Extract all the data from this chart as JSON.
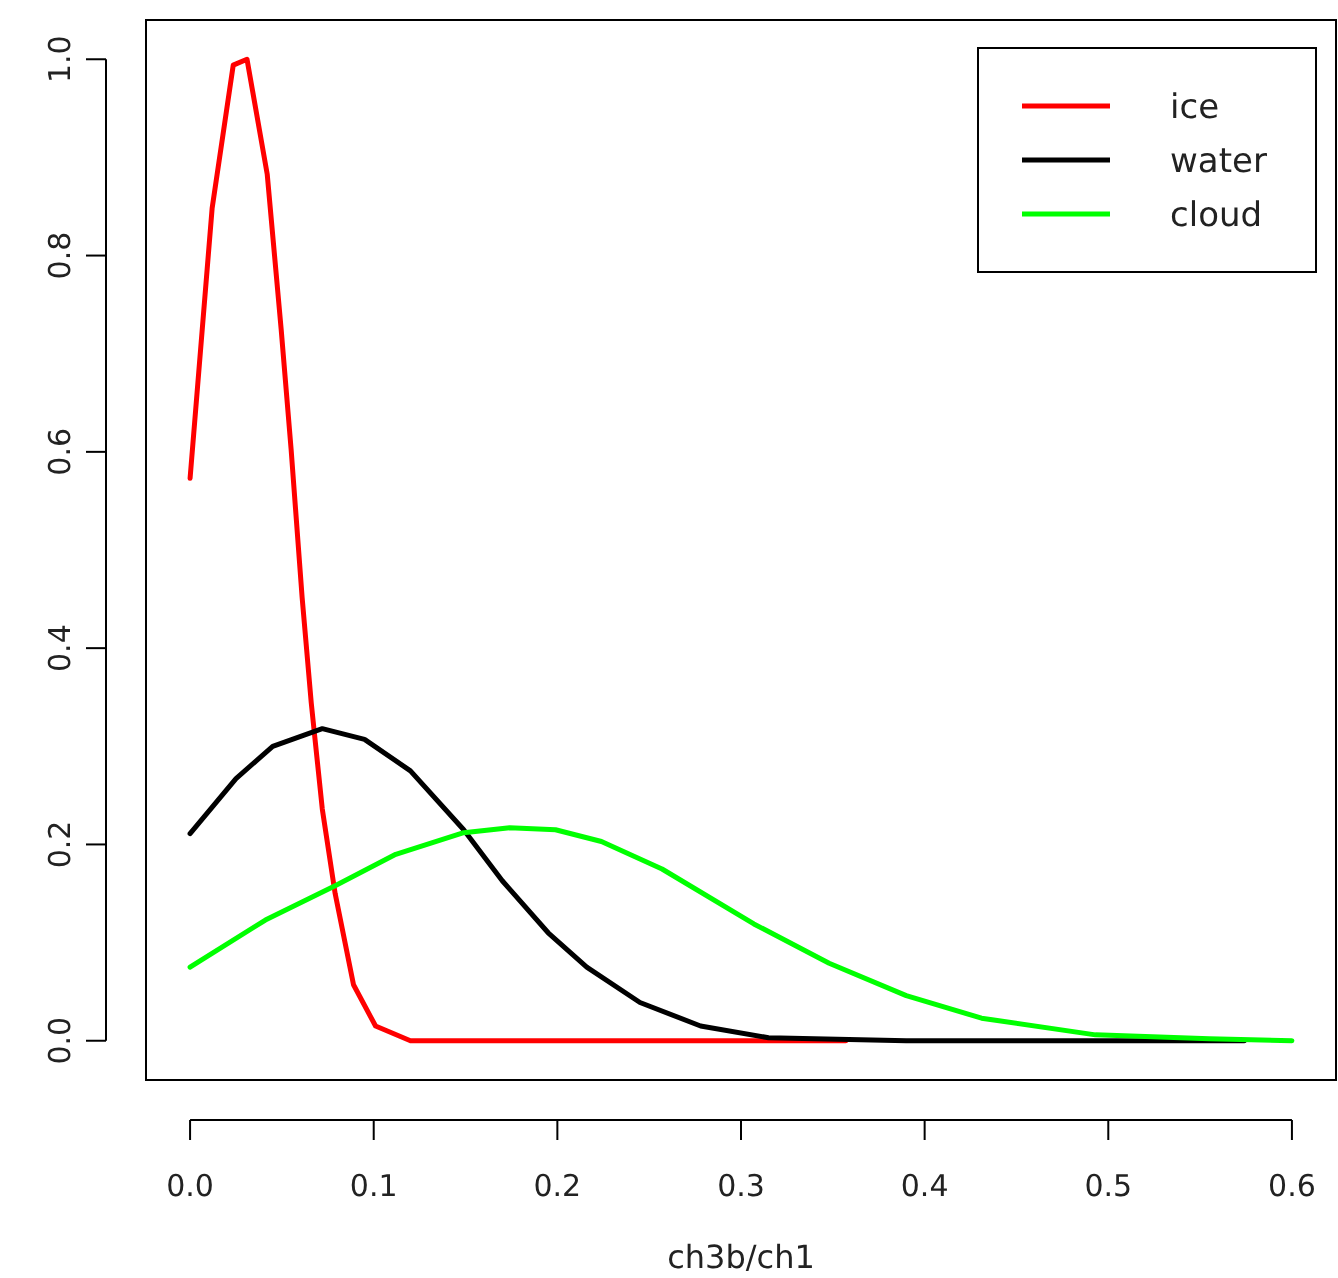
{
  "chart_data": {
    "type": "line",
    "xlabel": "ch3b/ch1",
    "xlim": [
      -0.024,
      0.624
    ],
    "ylim": [
      -0.04,
      1.04
    ],
    "xticks": [
      {
        "value": 0,
        "label": "0.0"
      },
      0.1,
      0.2,
      0.3,
      0.4,
      0.5,
      0.6
    ],
    "yticks": [
      {
        "value": 0,
        "label": "0.0"
      },
      0.2,
      0.4,
      0.6,
      0.8,
      {
        "value": 1,
        "label": "1.0"
      }
    ],
    "legend": "top right",
    "grid": false,
    "marker": "none",
    "line_style": "solid",
    "series": [
      {
        "name": "ice",
        "color": "#ff0000",
        "x": [
          0,
          0.012,
          0.0235,
          0.031,
          0.042,
          0.0496,
          0.055,
          0.061,
          0.066,
          0.072,
          0.079,
          0.089,
          0.101,
          0.12,
          0.357
        ],
        "values": [
          0.573,
          0.848,
          0.994,
          1.0,
          0.883,
          0.725,
          0.603,
          0.452,
          0.344,
          0.236,
          0.15,
          0.057,
          0.015,
          0,
          0
        ]
      },
      {
        "name": "water",
        "color": "#000000",
        "x": [
          0,
          0.025,
          0.045,
          0.072,
          0.095,
          0.12,
          0.149,
          0.17,
          0.195,
          0.216,
          0.245,
          0.278,
          0.315,
          0.39,
          0.574
        ],
        "values": [
          0.211,
          0.267,
          0.3,
          0.318,
          0.307,
          0.275,
          0.215,
          0.163,
          0.11,
          0.075,
          0.039,
          0.015,
          0.003,
          0,
          0
        ]
      },
      {
        "name": "cloud",
        "color": "#00ff00",
        "x": [
          0,
          0.041,
          0.079,
          0.112,
          0.149,
          0.174,
          0.199,
          0.224,
          0.257,
          0.307,
          0.348,
          0.39,
          0.431,
          0.493,
          0.555,
          0.6
        ],
        "values": [
          0.075,
          0.123,
          0.158,
          0.19,
          0.212,
          0.217,
          0.215,
          0.203,
          0.175,
          0.119,
          0.079,
          0.046,
          0.023,
          0.006,
          0.002,
          0
        ]
      }
    ]
  }
}
